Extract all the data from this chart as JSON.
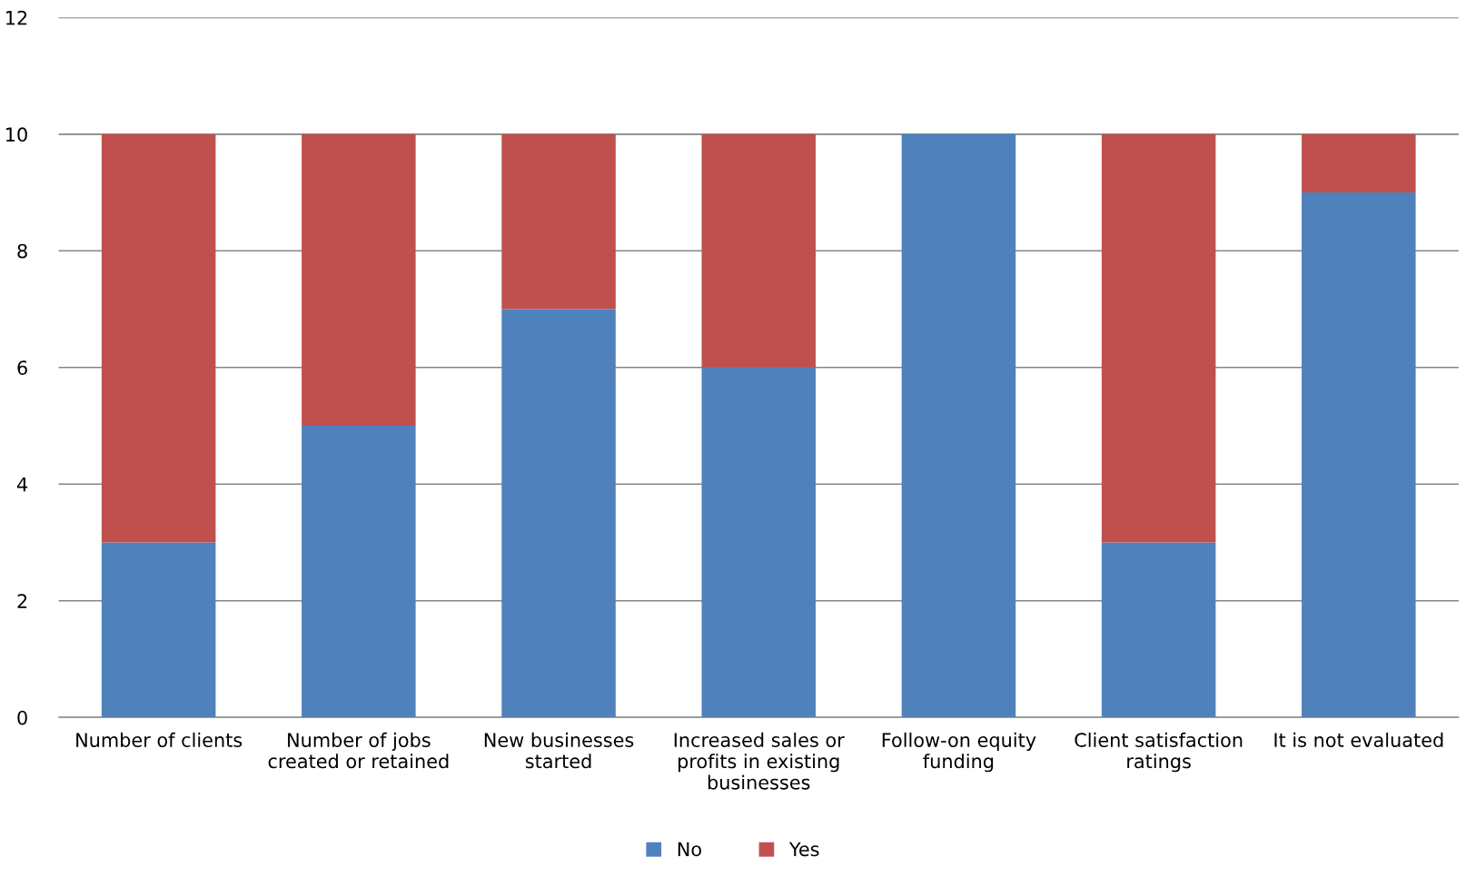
{
  "chart_data": {
    "type": "bar",
    "stacked": true,
    "categories": [
      "Number of clients",
      "Number of jobs\ncreated or retained",
      "New businesses\nstarted",
      "Increased sales or\nprofits in existing\nbusinesses",
      "Follow-on equity\nfunding",
      "Client satisfaction\nratings",
      "It is not evaluated"
    ],
    "series": [
      {
        "name": "No",
        "color": "#4f81bd",
        "values": [
          3,
          5,
          7,
          6,
          10,
          3,
          9
        ]
      },
      {
        "name": "Yes",
        "color": "#c0504d",
        "values": [
          7,
          5,
          3,
          4,
          0,
          7,
          1
        ]
      }
    ],
    "ylim": [
      0,
      12
    ],
    "yticks": [
      0,
      2,
      4,
      6,
      8,
      10,
      12
    ],
    "grid": "y",
    "legend": "bottom"
  }
}
